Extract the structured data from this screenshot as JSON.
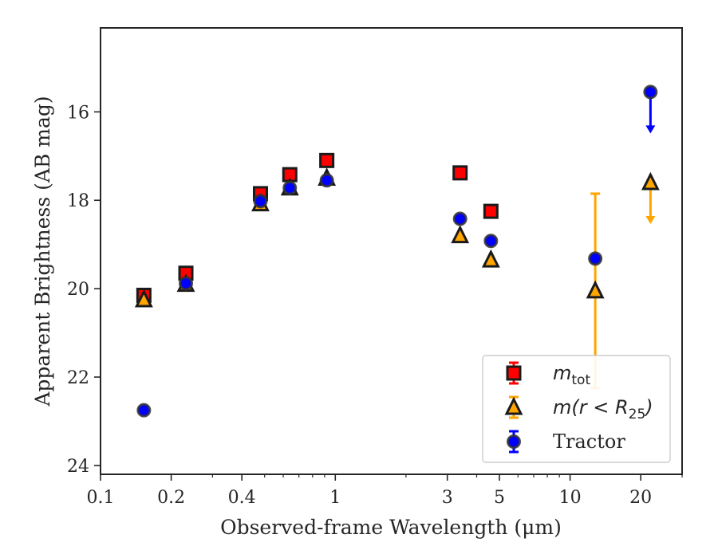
{
  "chart_data": {
    "type": "scatter",
    "xlabel": "Observed-frame Wavelength (μm)",
    "ylabel": "Apparent Brightness (AB mag)",
    "xscale": "log",
    "xlim": [
      0.1,
      30
    ],
    "ylim": [
      24.2,
      14.1
    ],
    "y_inverted": true,
    "xticks": [
      {
        "value": 0.1,
        "label": "0.1"
      },
      {
        "value": 0.2,
        "label": "0.2"
      },
      {
        "value": 0.4,
        "label": "0.4"
      },
      {
        "value": 1,
        "label": "1"
      },
      {
        "value": 3,
        "label": "3"
      },
      {
        "value": 5,
        "label": "5"
      },
      {
        "value": 10,
        "label": "10"
      },
      {
        "value": 20,
        "label": "20"
      }
    ],
    "yticks": [
      {
        "value": 16,
        "label": "16"
      },
      {
        "value": 18,
        "label": "18"
      },
      {
        "value": 20,
        "label": "20"
      },
      {
        "value": 22,
        "label": "22"
      },
      {
        "value": 24,
        "label": "24"
      }
    ],
    "grid": false,
    "legend_position": "lower right",
    "series": [
      {
        "name": "m_tot",
        "legend_main": "m",
        "legend_sub": "tot",
        "marker": "square",
        "color": "#ff0000",
        "edge": "#1a1a1a",
        "points": [
          {
            "x": 0.153,
            "y": 20.15
          },
          {
            "x": 0.231,
            "y": 19.65
          },
          {
            "x": 0.48,
            "y": 17.85
          },
          {
            "x": 0.64,
            "y": 17.42
          },
          {
            "x": 0.92,
            "y": 17.1
          },
          {
            "x": 3.4,
            "y": 17.38
          },
          {
            "x": 4.6,
            "y": 18.25
          }
        ]
      },
      {
        "name": "m(r<R25)",
        "legend_main": "m(r < R",
        "legend_sub": "25",
        "legend_close": ")",
        "marker": "triangle",
        "color": "#ffa500",
        "edge": "#1a1a1a",
        "points": [
          {
            "x": 0.153,
            "y": 20.25
          },
          {
            "x": 0.231,
            "y": 19.9
          },
          {
            "x": 0.48,
            "y": 18.08
          },
          {
            "x": 0.64,
            "y": 17.72
          },
          {
            "x": 0.92,
            "y": 17.5
          },
          {
            "x": 3.4,
            "y": 18.8
          },
          {
            "x": 4.6,
            "y": 19.35
          },
          {
            "x": 12.8,
            "y": 20.05,
            "yerr_low": 17.85,
            "yerr_high": 22.25
          },
          {
            "x": 22.0,
            "y": 17.6,
            "upper_limit": true
          }
        ]
      },
      {
        "name": "Tractor",
        "legend_main": "Tractor",
        "marker": "circle",
        "color": "#0000ff",
        "edge": "#333333",
        "points": [
          {
            "x": 0.153,
            "y": 22.75
          },
          {
            "x": 0.231,
            "y": 19.88
          },
          {
            "x": 0.48,
            "y": 18.02
          },
          {
            "x": 0.64,
            "y": 17.72
          },
          {
            "x": 0.92,
            "y": 17.55
          },
          {
            "x": 3.4,
            "y": 18.42
          },
          {
            "x": 4.6,
            "y": 18.92
          },
          {
            "x": 12.8,
            "y": 19.32
          },
          {
            "x": 22.0,
            "y": 15.55,
            "upper_limit": true
          }
        ]
      }
    ]
  }
}
